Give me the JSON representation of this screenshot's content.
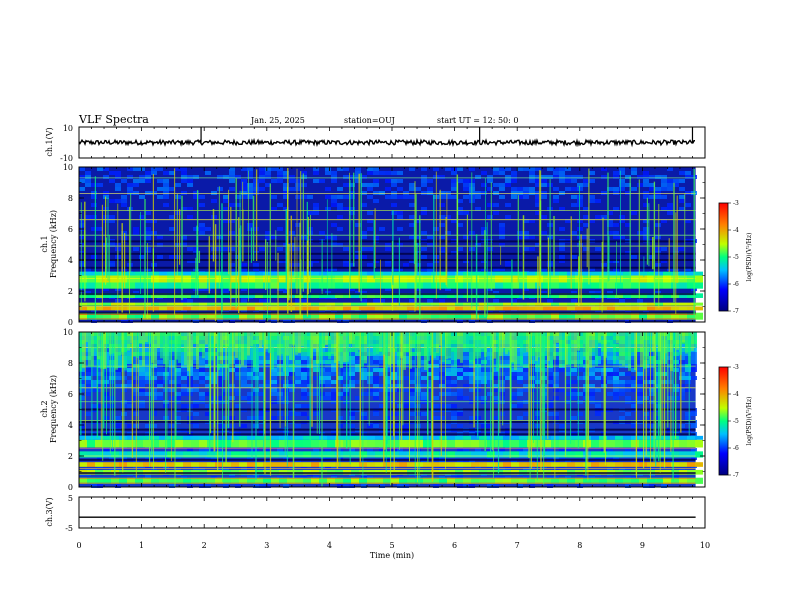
{
  "header": {
    "title": "VLF Spectra",
    "date": "Jan. 25, 2025",
    "station": "station=OUJ",
    "start": "start  UT =  12: 50: 0"
  },
  "chart_data": [
    {
      "type": "line",
      "name": "ch1-waveform",
      "ylabel": "ch.1(V)",
      "ylim": [
        -10,
        10
      ],
      "yticks": [
        "10",
        "-10"
      ],
      "baseline": 0,
      "spikes_min": [
        1.95,
        6.4,
        9.8
      ]
    },
    {
      "type": "heatmap",
      "name": "ch1-spectrogram",
      "ylabel": "ch.1\nFrequency (kHz)",
      "ylim": [
        0,
        10
      ],
      "yticks": [
        "0",
        "2",
        "4",
        "6",
        "8",
        "10"
      ],
      "colorbar": {
        "label": "log(PSD)(V²/Hz)",
        "range": [
          -7,
          -3
        ],
        "ticks": [
          "-3",
          "-4",
          "-5",
          "-6",
          "-7"
        ]
      }
    },
    {
      "type": "heatmap",
      "name": "ch2-spectrogram",
      "ylabel": "ch.2\nFrequency (kHz)",
      "ylim": [
        0,
        10
      ],
      "yticks": [
        "0",
        "2",
        "4",
        "6",
        "8",
        "10"
      ],
      "colorbar": {
        "label": "log(PSD)(V²/Hz)",
        "range": [
          -7,
          -3
        ],
        "ticks": [
          "-3",
          "-4",
          "-5",
          "-6",
          "-7"
        ]
      }
    },
    {
      "type": "line",
      "name": "ch3-waveform",
      "ylabel": "ch.3(V)",
      "ylim": [
        -5,
        5
      ],
      "yticks": [
        "5",
        "-5"
      ],
      "level": -1.5
    }
  ],
  "xaxis": {
    "xlabel": "Time (min)",
    "xlim": [
      0,
      10
    ],
    "xticks": [
      "0",
      "1",
      "2",
      "3",
      "4",
      "5",
      "6",
      "7",
      "8",
      "9",
      "10"
    ],
    "data_end_min": 9.85
  },
  "colors": {
    "low": "#00007f",
    "mid": "#00ff80",
    "high": "#ff0000"
  }
}
